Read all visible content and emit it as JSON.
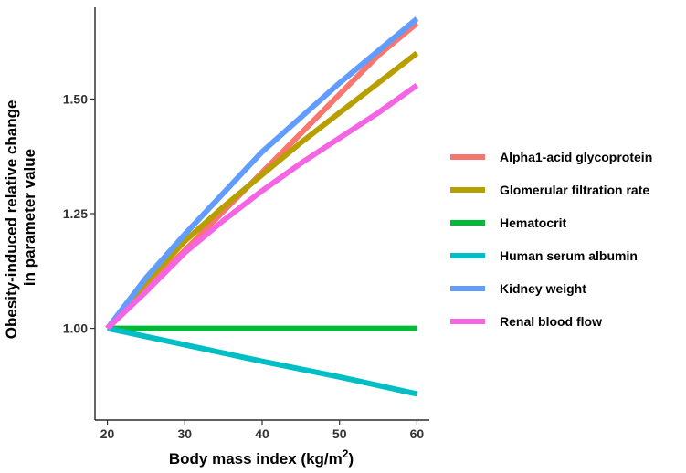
{
  "chart_data": {
    "type": "line",
    "title": "",
    "xlabel": "Body mass index (kg/m",
    "xlabel_sup": "2",
    "xlabel_tail": ")",
    "ylabel_line1": "Obesity-induced relative change",
    "ylabel_line2": "in parameter value",
    "xlim": [
      18.4,
      61.6
    ],
    "ylim": [
      0.8,
      1.7
    ],
    "xticks": [
      20,
      30,
      40,
      50,
      60
    ],
    "xtick_labels": [
      "20",
      "30",
      "40",
      "50",
      "60"
    ],
    "yticks": [
      1.0,
      1.25,
      1.5
    ],
    "ytick_labels": [
      "1.00",
      "1.25",
      "1.50"
    ],
    "grid": false,
    "legend_position": "right",
    "series": [
      {
        "name": "Alpha1-acid glycoprotein",
        "color": "#F8766D",
        "x": [
          20,
          25,
          30,
          35,
          40,
          45,
          50,
          55,
          60
        ],
        "y": [
          1.0,
          1.09,
          1.17,
          1.255,
          1.34,
          1.425,
          1.51,
          1.595,
          1.665
        ]
      },
      {
        "name": "Glomerular filtration rate",
        "color": "#B79F00",
        "x": [
          20,
          25,
          30,
          35,
          40,
          45,
          50,
          55,
          60
        ],
        "y": [
          1.0,
          1.1,
          1.19,
          1.265,
          1.335,
          1.405,
          1.47,
          1.535,
          1.6
        ]
      },
      {
        "name": "Hematocrit",
        "color": "#00BA38",
        "x": [
          20,
          60
        ],
        "y": [
          1.0,
          1.0
        ]
      },
      {
        "name": "Human serum albumin",
        "color": "#00BFC4",
        "x": [
          20,
          30,
          40,
          50,
          60
        ],
        "y": [
          1.0,
          0.964,
          0.928,
          0.894,
          0.857
        ]
      },
      {
        "name": "Kidney weight",
        "color": "#619CFF",
        "x": [
          20,
          25,
          30,
          35,
          40,
          45,
          50,
          55,
          60
        ],
        "y": [
          1.0,
          1.11,
          1.205,
          1.295,
          1.385,
          1.46,
          1.535,
          1.605,
          1.675
        ]
      },
      {
        "name": "Renal blood flow",
        "color": "#F564E3",
        "x": [
          20,
          25,
          30,
          35,
          40,
          45,
          50,
          55,
          60
        ],
        "y": [
          1.0,
          1.08,
          1.165,
          1.235,
          1.3,
          1.36,
          1.415,
          1.47,
          1.53
        ]
      }
    ]
  }
}
